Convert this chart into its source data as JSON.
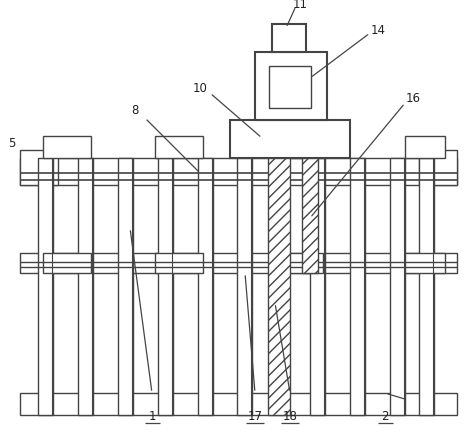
{
  "fig_width": 4.77,
  "fig_height": 4.48,
  "bg_color": "#ffffff",
  "lc": "#444444",
  "lc_thin": "#666666"
}
